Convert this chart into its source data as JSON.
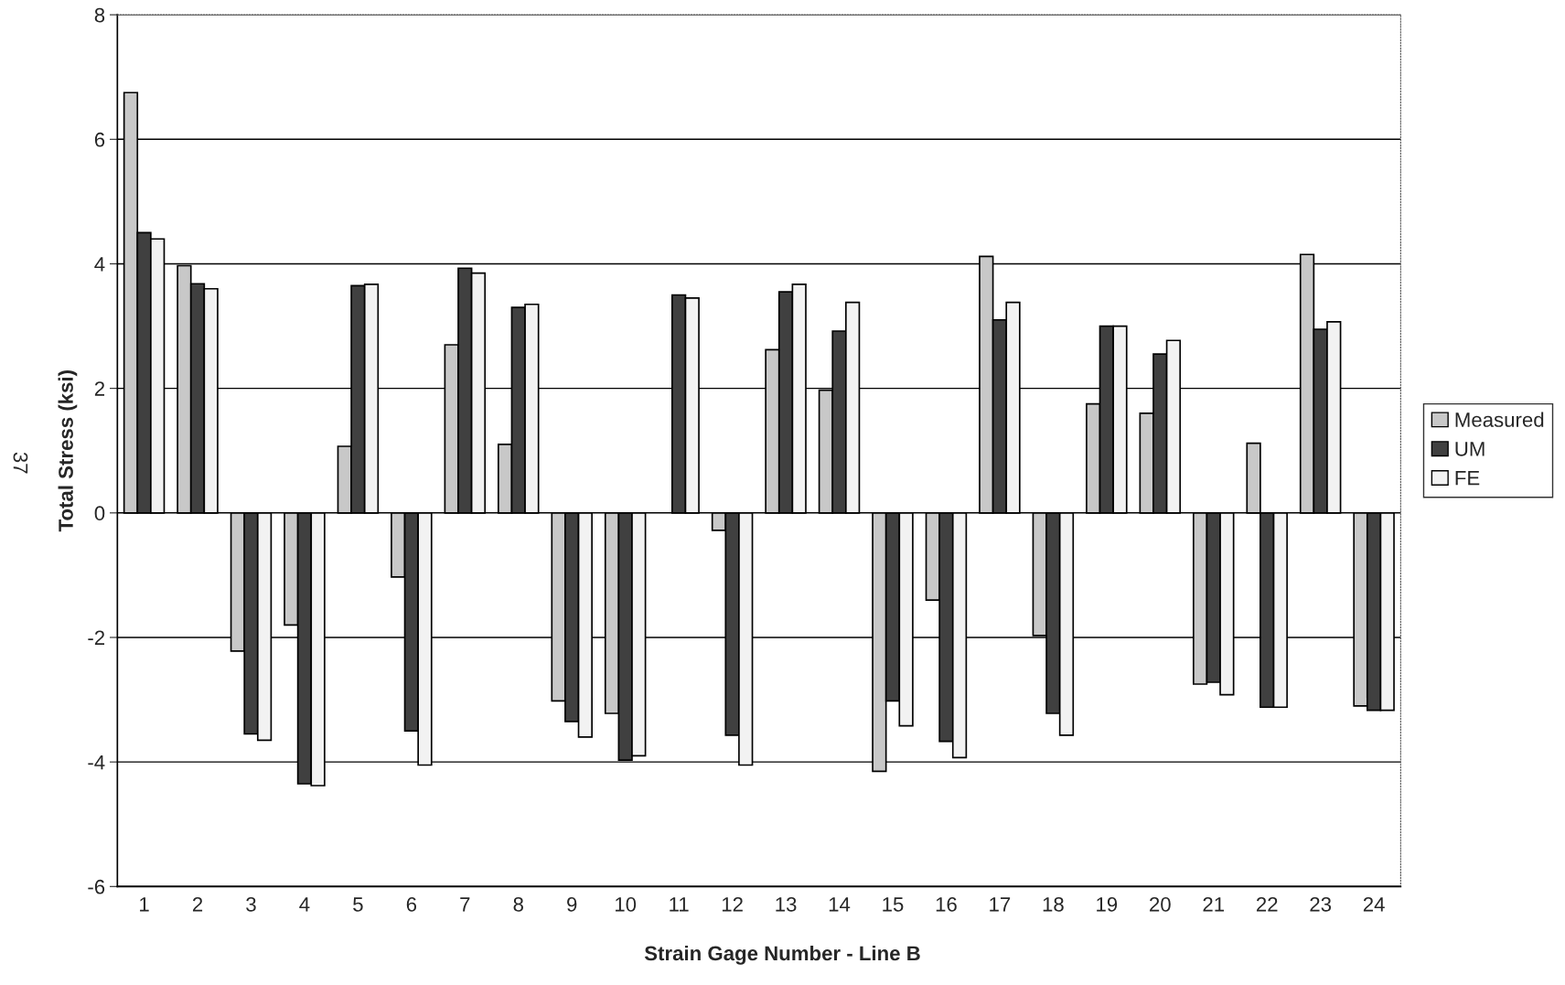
{
  "chart_data": {
    "type": "bar",
    "xlabel": "Strain Gage Number - Line B",
    "ylabel": "Total Stress (ksi)",
    "categories": [
      "1",
      "2",
      "3",
      "4",
      "5",
      "6",
      "7",
      "8",
      "9",
      "10",
      "11",
      "12",
      "13",
      "14",
      "15",
      "16",
      "17",
      "18",
      "19",
      "20",
      "21",
      "22",
      "23",
      "24"
    ],
    "series": [
      {
        "name": "Measured",
        "color": "#c8c8c8",
        "values": [
          6.75,
          3.97,
          -2.22,
          -1.8,
          1.07,
          -1.03,
          2.7,
          1.1,
          -3.02,
          -3.22,
          null,
          -0.28,
          2.62,
          1.97,
          -4.15,
          -1.4,
          4.12,
          -1.97,
          1.75,
          1.6,
          -2.75,
          1.12,
          4.15,
          -3.1
        ]
      },
      {
        "name": "UM",
        "color": "#404040",
        "values": [
          4.5,
          3.68,
          -3.55,
          -4.35,
          3.65,
          -3.5,
          3.93,
          3.3,
          -3.35,
          -3.97,
          3.5,
          -3.57,
          3.55,
          2.92,
          -3.02,
          -3.67,
          3.1,
          -3.22,
          3.0,
          2.55,
          -2.72,
          -3.12,
          2.95,
          -3.17
        ]
      },
      {
        "name": "FE",
        "color": "#f2f2f2",
        "values": [
          4.4,
          3.6,
          -3.65,
          -4.38,
          3.67,
          -4.05,
          3.85,
          3.35,
          -3.6,
          -3.9,
          3.45,
          -4.05,
          3.67,
          3.38,
          -3.42,
          -3.93,
          3.38,
          -3.57,
          3.0,
          2.77,
          -2.92,
          -3.12,
          3.07,
          -3.17
        ]
      }
    ],
    "ylim": [
      -6,
      8
    ],
    "yticks": [
      -6,
      -4,
      -2,
      0,
      2,
      4,
      6,
      8
    ],
    "grid": "y",
    "legend": "right",
    "annotations": [
      "37"
    ]
  }
}
